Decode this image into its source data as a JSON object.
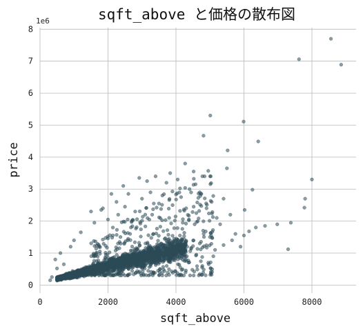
{
  "chart_data": {
    "type": "scatter",
    "title": "sqft_above と価格の散布図",
    "xlabel": "sqft_above",
    "ylabel": "price",
    "y_offset_label": "1e6",
    "xlim": [
      0,
      9300
    ],
    "ylim": [
      -250000,
      8050000
    ],
    "x_ticks": [
      0,
      2000,
      4000,
      6000,
      8000
    ],
    "x_tick_labels": [
      "0",
      "2000",
      "4000",
      "6000",
      "8000"
    ],
    "y_ticks": [
      0,
      1000000,
      2000000,
      3000000,
      4000000,
      5000000,
      6000000,
      7000000,
      8000000
    ],
    "y_tick_labels": [
      "0",
      "1",
      "2",
      "3",
      "4",
      "5",
      "6",
      "7",
      "8"
    ],
    "grid": true,
    "marker_color": "#2b4a57",
    "marker_alpha": 0.55,
    "dense_core": {
      "description_x_range": [
        700,
        4200
      ],
      "description_y_range": [
        80000,
        1600000
      ]
    },
    "points": [
      [
        8560,
        7700000
      ],
      [
        7620,
        7060000
      ],
      [
        8860,
        6890000
      ],
      [
        5010,
        5300000
      ],
      [
        5990,
        5110000
      ],
      [
        4810,
        4670000
      ],
      [
        6420,
        4490000
      ],
      [
        5520,
        4210000
      ],
      [
        8000,
        3300000
      ],
      [
        4270,
        3800000
      ],
      [
        5500,
        3650000
      ],
      [
        4950,
        3570000
      ],
      [
        6250,
        2980000
      ],
      [
        7800,
        2700000
      ],
      [
        5400,
        2700000
      ],
      [
        5050,
        2600000
      ],
      [
        6020,
        2350000
      ],
      [
        5600,
        2200000
      ],
      [
        7780,
        2420000
      ],
      [
        6980,
        1900000
      ],
      [
        7380,
        1950000
      ],
      [
        6620,
        1850000
      ],
      [
        6350,
        1800000
      ],
      [
        6000,
        1550000
      ],
      [
        7300,
        1120000
      ],
      [
        6150,
        1680000
      ],
      [
        5750,
        1600000
      ],
      [
        4520,
        3550000
      ],
      [
        4050,
        3300000
      ],
      [
        3830,
        3500000
      ],
      [
        3720,
        3200000
      ],
      [
        3400,
        3400000
      ],
      [
        3150,
        3250000
      ],
      [
        2920,
        3350000
      ],
      [
        2450,
        3100000
      ],
      [
        2600,
        2850000
      ],
      [
        3250,
        2900000
      ],
      [
        3600,
        2800000
      ],
      [
        4400,
        3000000
      ],
      [
        4700,
        2900000
      ],
      [
        4150,
        2750000
      ],
      [
        4900,
        2400000
      ],
      [
        4600,
        2250000
      ],
      [
        4300,
        2400000
      ],
      [
        3900,
        2500000
      ],
      [
        5200,
        2100000
      ],
      [
        5300,
        1900000
      ],
      [
        5650,
        1400000
      ],
      [
        5400,
        1250000
      ],
      [
        5900,
        1200000
      ],
      [
        5150,
        1100000
      ],
      [
        5000,
        1500000
      ],
      [
        4800,
        1700000
      ],
      [
        4700,
        1300000
      ],
      [
        4550,
        1900000
      ],
      [
        2100,
        2850000
      ],
      [
        1850,
        2400000
      ],
      [
        1800,
        2350000
      ],
      [
        2250,
        2600000
      ],
      [
        2500,
        2450000
      ],
      [
        1600,
        1950000
      ],
      [
        1200,
        1650000
      ],
      [
        1000,
        1400000
      ],
      [
        900,
        1200000
      ],
      [
        600,
        1000000
      ],
      [
        450,
        800000
      ],
      [
        350,
        250000
      ],
      [
        300,
        150000
      ],
      [
        500,
        520000
      ],
      [
        700,
        650000
      ],
      [
        4950,
        700000
      ],
      [
        5100,
        900000
      ],
      [
        4600,
        950000
      ],
      [
        3000,
        2700000
      ],
      [
        3500,
        2550000
      ],
      [
        2800,
        2300000
      ],
      [
        3300,
        2200000
      ],
      [
        2300,
        2200000
      ],
      [
        2000,
        2050000
      ],
      [
        1500,
        2300000
      ],
      [
        2700,
        2000000
      ],
      [
        3800,
        2100000
      ],
      [
        4200,
        1950000
      ]
    ]
  }
}
